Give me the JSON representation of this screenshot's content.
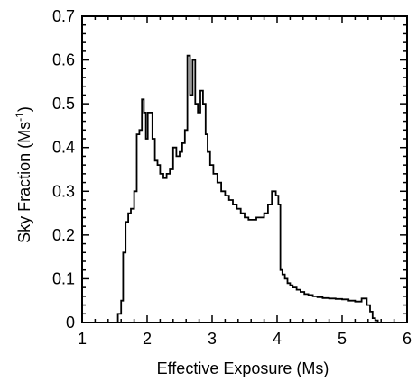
{
  "chart_data": {
    "type": "line",
    "style": "step-histogram",
    "xlabel": "Effective Exposure (Ms)",
    "ylabel_main": "Sky Fraction (Ms",
    "ylabel_sup": "-1",
    "ylabel_close": ")",
    "xlim": [
      1,
      6
    ],
    "ylim": [
      0,
      0.7
    ],
    "xticks": [
      1,
      2,
      3,
      4,
      5,
      6
    ],
    "xtick_labels": [
      "1",
      "2",
      "3",
      "4",
      "5",
      "6"
    ],
    "yticks": [
      0,
      0.1,
      0.2,
      0.3,
      0.4,
      0.5,
      0.6,
      0.7
    ],
    "ytick_labels": [
      "0",
      "0.1",
      "0.2",
      "0.3",
      "0.4",
      "0.5",
      "0.6",
      "0.7"
    ],
    "grid": false,
    "series": [
      {
        "color": "#000000",
        "x": [
          1.55,
          1.6,
          1.63,
          1.67,
          1.71,
          1.75,
          1.8,
          1.84,
          1.88,
          1.92,
          1.95,
          1.98,
          2.01,
          2.04,
          2.08,
          2.12,
          2.16,
          2.2,
          2.25,
          2.3,
          2.35,
          2.4,
          2.45,
          2.5,
          2.54,
          2.58,
          2.62,
          2.66,
          2.7,
          2.74,
          2.78,
          2.82,
          2.86,
          2.9,
          2.93,
          2.97,
          3.02,
          3.08,
          3.14,
          3.2,
          3.26,
          3.32,
          3.38,
          3.44,
          3.5,
          3.56,
          3.62,
          3.68,
          3.74,
          3.8,
          3.86,
          3.92,
          3.98,
          4.02,
          4.05,
          4.08,
          4.12,
          4.16,
          4.2,
          4.24,
          4.3,
          4.36,
          4.42,
          4.48,
          4.55,
          4.62,
          4.7,
          4.8,
          4.9,
          5.0,
          5.1,
          5.2,
          5.3,
          5.38,
          5.43,
          5.47,
          5.51,
          5.55,
          5.6
        ],
        "y": [
          0.02,
          0.05,
          0.16,
          0.23,
          0.25,
          0.26,
          0.3,
          0.43,
          0.44,
          0.51,
          0.48,
          0.42,
          0.48,
          0.48,
          0.42,
          0.37,
          0.36,
          0.34,
          0.33,
          0.34,
          0.35,
          0.4,
          0.38,
          0.39,
          0.41,
          0.44,
          0.61,
          0.52,
          0.6,
          0.5,
          0.48,
          0.53,
          0.5,
          0.43,
          0.39,
          0.36,
          0.34,
          0.32,
          0.3,
          0.29,
          0.28,
          0.27,
          0.26,
          0.25,
          0.24,
          0.235,
          0.235,
          0.24,
          0.24,
          0.25,
          0.27,
          0.3,
          0.29,
          0.27,
          0.12,
          0.11,
          0.1,
          0.09,
          0.085,
          0.08,
          0.075,
          0.07,
          0.065,
          0.063,
          0.06,
          0.058,
          0.056,
          0.055,
          0.054,
          0.053,
          0.05,
          0.048,
          0.055,
          0.04,
          0.025,
          0.01,
          0.005,
          0.0,
          0.0
        ]
      }
    ]
  }
}
